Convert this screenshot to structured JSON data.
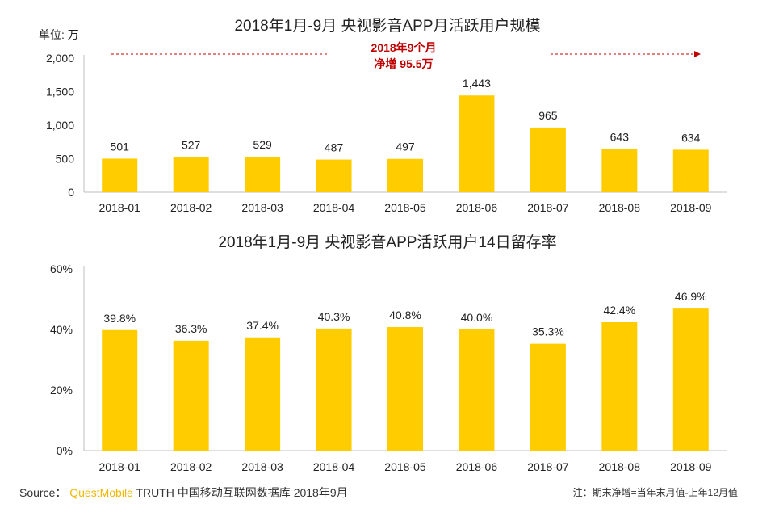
{
  "chart_data": [
    {
      "type": "bar",
      "title": "2018年1月-9月  央视影音APP月活跃用户规模",
      "unit_label": "单位: 万",
      "categories": [
        "2018-01",
        "2018-02",
        "2018-03",
        "2018-04",
        "2018-05",
        "2018-06",
        "2018-07",
        "2018-08",
        "2018-09"
      ],
      "values": [
        501,
        527,
        529,
        487,
        497,
        1443,
        965,
        643,
        634
      ],
      "value_labels": [
        "501",
        "527",
        "529",
        "487",
        "497",
        "1,443",
        "965",
        "643",
        "634"
      ],
      "yticks": [
        "0",
        "500",
        "1,000",
        "1,500",
        "2,000"
      ],
      "ytick_values": [
        0,
        500,
        1000,
        1500,
        2000
      ],
      "ylim": [
        0,
        2000
      ],
      "annotation": {
        "line1": "2018年9个月",
        "line2": "净增 95.5万"
      },
      "bar_color": "#ffcc00",
      "annotation_color": "#c00000",
      "grid": false
    },
    {
      "type": "bar",
      "title": "2018年1月-9月  央视影音APP活跃用户14日留存率",
      "categories": [
        "2018-01",
        "2018-02",
        "2018-03",
        "2018-04",
        "2018-05",
        "2018-06",
        "2018-07",
        "2018-08",
        "2018-09"
      ],
      "values": [
        39.8,
        36.3,
        37.4,
        40.3,
        40.8,
        40.0,
        35.3,
        42.4,
        46.9
      ],
      "value_labels": [
        "39.8%",
        "36.3%",
        "37.4%",
        "40.3%",
        "40.8%",
        "40.0%",
        "35.3%",
        "42.4%",
        "46.9%"
      ],
      "yticks": [
        "0%",
        "20%",
        "40%",
        "60%"
      ],
      "ytick_values": [
        0,
        20,
        40,
        60
      ],
      "ylim": [
        0,
        60
      ],
      "bar_color": "#ffcc00",
      "grid": false
    }
  ],
  "footer": {
    "source_label": "Source：",
    "brand": "QuestMobile",
    "source_text": " TRUTH 中国移动互联网数据库 2018年9月"
  },
  "note": "注：期末净增=当年末月值-上年12月值"
}
